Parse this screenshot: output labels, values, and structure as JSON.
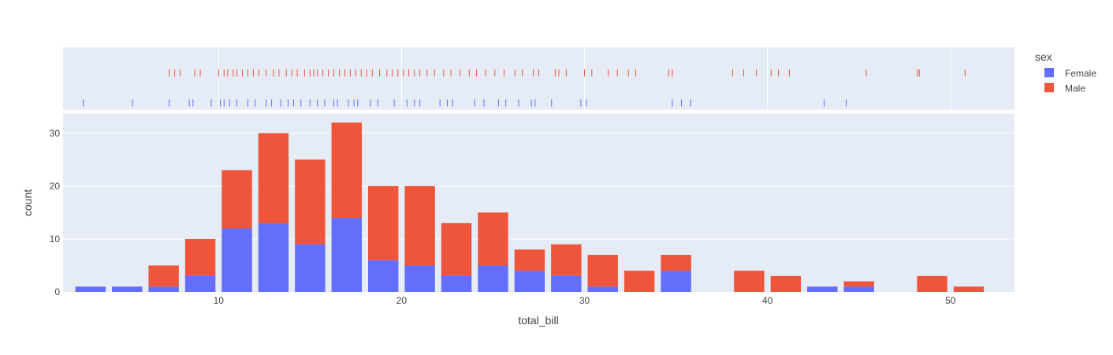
{
  "chart_data": {
    "type": "bar",
    "barmode": "stack",
    "xlabel": "total_bill",
    "ylabel": "count",
    "xlim": [
      1.5,
      53.5
    ],
    "ylim": [
      0,
      33.7
    ],
    "xticks": [
      10,
      20,
      30,
      40,
      50
    ],
    "yticks": [
      0,
      10,
      20,
      30
    ],
    "bin_start": 2,
    "bin_width": 2,
    "legend": {
      "title": "sex",
      "position": "right"
    },
    "colors": {
      "Female": "#636efa",
      "Male": "#ef553b",
      "plot_bg": "#e5ecf6",
      "grid": "#ffffff"
    },
    "series": [
      {
        "name": "Female",
        "values": [
          1,
          1,
          1,
          3,
          12,
          13,
          9,
          14,
          6,
          5,
          3,
          5,
          4,
          3,
          1,
          0,
          4,
          0,
          0,
          0,
          1,
          1,
          0,
          0,
          0
        ]
      },
      {
        "name": "Male",
        "values": [
          0,
          0,
          4,
          7,
          11,
          17,
          16,
          18,
          14,
          15,
          10,
          10,
          4,
          6,
          6,
          4,
          3,
          0,
          4,
          3,
          0,
          1,
          0,
          3,
          1
        ]
      }
    ],
    "rug": {
      "Male": [
        7.3,
        7.6,
        7.9,
        8.7,
        9.0,
        10.0,
        10.3,
        10.5,
        10.8,
        11.0,
        11.3,
        11.6,
        11.9,
        12.2,
        12.6,
        13.0,
        13.3,
        13.7,
        14.0,
        14.3,
        14.7,
        15.0,
        15.2,
        15.4,
        15.7,
        16.0,
        16.3,
        16.6,
        16.9,
        17.2,
        17.5,
        17.8,
        18.1,
        18.4,
        18.8,
        19.2,
        19.5,
        19.8,
        20.1,
        20.4,
        20.7,
        21.0,
        21.4,
        21.8,
        22.3,
        22.7,
        23.2,
        23.7,
        24.1,
        24.6,
        25.1,
        25.6,
        26.2,
        26.6,
        27.2,
        27.5,
        28.4,
        28.6,
        29.0,
        30.0,
        30.4,
        31.3,
        31.8,
        32.4,
        32.8,
        34.6,
        34.8,
        38.1,
        38.7,
        39.4,
        40.2,
        40.6,
        41.2,
        45.4,
        48.2,
        48.3,
        50.8
      ]
    },
    "rug_female": [
      2.6,
      5.3,
      7.3,
      8.4,
      8.6,
      9.6,
      10.1,
      10.3,
      10.6,
      11.0,
      11.6,
      12.0,
      12.6,
      12.9,
      13.4,
      13.8,
      14.1,
      14.5,
      15.0,
      15.4,
      15.8,
      16.3,
      16.5,
      17.1,
      17.4,
      17.6,
      18.3,
      18.7,
      19.6,
      20.3,
      20.7,
      21.0,
      22.1,
      22.5,
      22.8,
      24.0,
      24.5,
      25.3,
      25.7,
      26.4,
      27.1,
      27.3,
      28.2,
      29.8,
      30.1,
      34.8,
      35.3,
      35.8,
      43.1,
      44.3
    ]
  }
}
